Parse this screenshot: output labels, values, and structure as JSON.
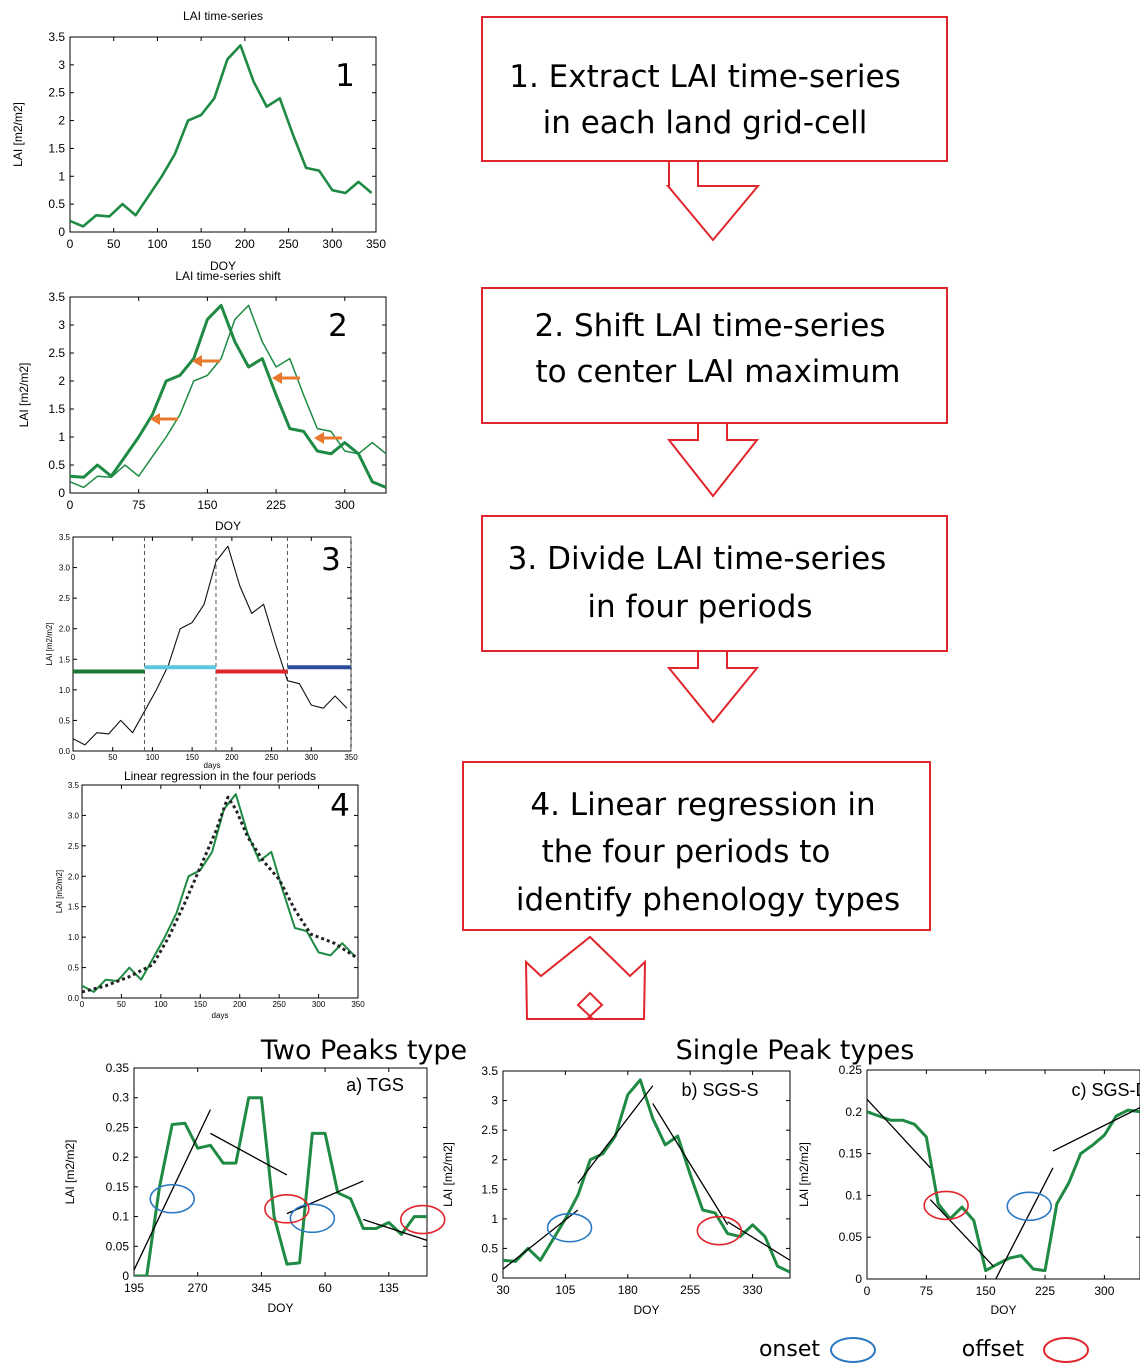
{
  "steps": [
    {
      "lines": [
        "1. Extract LAI time-series",
        "in each land grid-cell"
      ]
    },
    {
      "lines": [
        "2. Shift LAI time-series",
        " to center LAI maximum"
      ]
    },
    {
      "lines": [
        "3. Divide LAI time-series",
        "in four periods"
      ]
    },
    {
      "lines": [
        "4. Linear regression in",
        "the four periods to",
        "identify phenology types"
      ]
    }
  ],
  "sections": {
    "two_peaks": "Two Peaks type",
    "single_peak": "Single Peak types"
  },
  "legend": {
    "onset": "onset",
    "offset": "offset",
    "onset_color": "#2a79c2",
    "offset_color": "#e0262c"
  },
  "colors": {
    "series": "#1e8a43",
    "box": "#e0262c",
    "p3_green": "#1c7a35",
    "p3_cyan": "#5bc6dd",
    "p3_red": "#e0262c",
    "p3_blue": "#2c4b9a",
    "arrow": "#e8792c"
  },
  "chart_data": [
    {
      "id": "p1",
      "type": "line",
      "title": "LAI time-series",
      "label": "1",
      "xlabel": "DOY",
      "ylabel": "LAI [m2/m2]",
      "xlim": [
        0,
        350
      ],
      "ylim": [
        0,
        3.5
      ],
      "xticks": [
        0,
        50,
        100,
        150,
        200,
        250,
        300,
        350
      ],
      "yticks": [
        0,
        0.5,
        1,
        1.5,
        2,
        2.5,
        3,
        3.5
      ],
      "x": [
        0,
        15,
        30,
        45,
        60,
        75,
        90,
        105,
        120,
        135,
        150,
        165,
        180,
        195,
        210,
        225,
        240,
        255,
        270,
        285,
        300,
        315,
        330,
        345
      ],
      "y": [
        0.2,
        0.1,
        0.3,
        0.28,
        0.5,
        0.3,
        0.65,
        1.0,
        1.4,
        2.0,
        2.1,
        2.4,
        3.1,
        3.35,
        2.7,
        2.25,
        2.4,
        1.75,
        1.15,
        1.1,
        0.75,
        0.7,
        0.9,
        0.7
      ]
    },
    {
      "id": "p2",
      "type": "line",
      "title": "LAI time-series shift",
      "label": "2",
      "xlabel": "DOY",
      "ylabel": "LAI [m2/m2]",
      "xlim": [
        0,
        345
      ],
      "ylim": [
        0,
        3.5
      ],
      "xticks": [
        0,
        75,
        150,
        225,
        300
      ],
      "yticks": [
        0,
        0.5,
        1,
        1.5,
        2,
        2.5,
        3,
        3.5
      ],
      "series": [
        {
          "x": [
            0,
            15,
            30,
            45,
            60,
            75,
            90,
            105,
            120,
            135,
            150,
            165,
            180,
            195,
            210,
            225,
            240,
            255,
            270,
            285,
            300,
            315,
            330,
            345
          ],
          "y": [
            0.2,
            0.1,
            0.3,
            0.28,
            0.5,
            0.3,
            0.65,
            1.0,
            1.4,
            2.0,
            2.1,
            2.4,
            3.1,
            3.35,
            2.7,
            2.25,
            2.4,
            1.75,
            1.15,
            1.1,
            0.75,
            0.7,
            0.9,
            0.7
          ]
        },
        {
          "x": [
            0,
            15,
            30,
            45,
            60,
            75,
            90,
            105,
            120,
            135,
            150,
            165,
            180,
            195,
            210,
            225,
            240,
            255,
            270,
            285,
            300,
            315,
            330,
            345
          ],
          "y": [
            0.3,
            0.28,
            0.5,
            0.3,
            0.65,
            1.0,
            1.4,
            2.0,
            2.1,
            2.4,
            3.1,
            3.35,
            2.7,
            2.25,
            2.4,
            1.75,
            1.15,
            1.1,
            0.75,
            0.7,
            0.9,
            0.7,
            0.2,
            0.1
          ]
        }
      ]
    },
    {
      "id": "p3",
      "type": "line",
      "label": "3",
      "xlabel": "days",
      "ylabel": "LAI [m2/m2]",
      "xlim": [
        0,
        350
      ],
      "ylim": [
        0,
        3.5
      ],
      "xticks": [
        0,
        50,
        100,
        150,
        200,
        250,
        300,
        350
      ],
      "yticks": [
        0.0,
        0.5,
        1.0,
        1.5,
        2.0,
        2.5,
        3.0,
        3.5
      ],
      "ytick_labels": [
        "0.0",
        "0.5",
        "1.0",
        "1.5",
        "2.0",
        "2.5",
        "3.0",
        "3.5"
      ],
      "dividers": [
        90,
        180,
        270,
        350
      ],
      "periods": [
        {
          "x0": 0,
          "x1": 90,
          "y": 1.3
        },
        {
          "x0": 90,
          "x1": 180,
          "y": 1.37
        },
        {
          "x0": 180,
          "x1": 270,
          "y": 1.3
        },
        {
          "x0": 270,
          "x1": 350,
          "y": 1.37
        }
      ],
      "x": [
        0,
        15,
        30,
        45,
        60,
        75,
        90,
        105,
        120,
        135,
        150,
        165,
        180,
        195,
        210,
        225,
        240,
        255,
        270,
        285,
        300,
        315,
        330,
        345
      ],
      "y": [
        0.2,
        0.1,
        0.3,
        0.28,
        0.5,
        0.3,
        0.65,
        1.0,
        1.4,
        2.0,
        2.1,
        2.4,
        3.1,
        3.35,
        2.7,
        2.25,
        2.4,
        1.75,
        1.15,
        1.1,
        0.75,
        0.7,
        0.9,
        0.7
      ]
    },
    {
      "id": "p4",
      "type": "line",
      "title": "Linear regression in the four periods",
      "label": "4",
      "xlabel": "days",
      "ylabel": "LAI [m2/m2]",
      "xlim": [
        0,
        350
      ],
      "ylim": [
        0,
        3.5
      ],
      "xticks": [
        0,
        50,
        100,
        150,
        200,
        250,
        300,
        350
      ],
      "yticks": [
        0.0,
        0.5,
        1.0,
        1.5,
        2.0,
        2.5,
        3.0,
        3.5
      ],
      "ytick_labels": [
        "0.0",
        "0.5",
        "1.0",
        "1.5",
        "2.0",
        "2.5",
        "3.0",
        "3.5"
      ],
      "x": [
        0,
        15,
        30,
        45,
        60,
        75,
        90,
        105,
        120,
        135,
        150,
        165,
        180,
        195,
        210,
        225,
        240,
        255,
        270,
        285,
        300,
        315,
        330,
        345
      ],
      "y": [
        0.2,
        0.1,
        0.3,
        0.28,
        0.5,
        0.3,
        0.65,
        1.0,
        1.4,
        2.0,
        2.1,
        2.4,
        3.1,
        3.35,
        2.7,
        2.25,
        2.4,
        1.75,
        1.15,
        1.1,
        0.75,
        0.7,
        0.9,
        0.7
      ],
      "fit_x": [
        0,
        30,
        60,
        90,
        110,
        130,
        150,
        170,
        185,
        195,
        210,
        230,
        250,
        270,
        290,
        320,
        350
      ],
      "fit_y": [
        0.1,
        0.2,
        0.35,
        0.55,
        1.0,
        1.55,
        2.15,
        2.75,
        3.3,
        3.1,
        2.65,
        2.25,
        1.95,
        1.45,
        1.05,
        0.9,
        0.65
      ]
    },
    {
      "id": "pa",
      "type": "line",
      "label": "a) TGS",
      "xlabel": "DOY",
      "ylabel": "LAI [m2/m2]",
      "xlim": [
        0,
        345
      ],
      "ylim": [
        0,
        0.35
      ],
      "xticks": [
        0,
        75,
        150,
        225,
        300
      ],
      "xtick_labels": [
        "195",
        "270",
        "345",
        "60",
        "135"
      ],
      "yticks": [
        0,
        0.05,
        0.1,
        0.15,
        0.2,
        0.25,
        0.3,
        0.35
      ],
      "x": [
        0,
        15,
        30,
        45,
        60,
        75,
        90,
        105,
        120,
        135,
        150,
        165,
        180,
        195,
        210,
        225,
        240,
        255,
        270,
        285,
        300,
        315,
        330,
        345
      ],
      "y": [
        0.0,
        0.0,
        0.15,
        0.255,
        0.257,
        0.215,
        0.22,
        0.19,
        0.19,
        0.3,
        0.3,
        0.1,
        0.02,
        0.022,
        0.24,
        0.24,
        0.14,
        0.13,
        0.08,
        0.08,
        0.09,
        0.07,
        0.1,
        0.1
      ],
      "fits": [
        {
          "x": [
            0,
            90
          ],
          "y": [
            0.01,
            0.28
          ]
        },
        {
          "x": [
            90,
            180
          ],
          "y": [
            0.24,
            0.17
          ]
        },
        {
          "x": [
            180,
            270
          ],
          "y": [
            0.105,
            0.16
          ]
        },
        {
          "x": [
            270,
            345
          ],
          "y": [
            0.095,
            0.06
          ]
        }
      ],
      "onset": [
        {
          "x": 45,
          "y": 0.13
        },
        {
          "x": 210,
          "y": 0.097
        }
      ],
      "offset": [
        {
          "x": 180,
          "y": 0.113
        },
        {
          "x": 340,
          "y": 0.095
        }
      ]
    },
    {
      "id": "pb",
      "type": "line",
      "label": "b) SGS-S",
      "xlabel": "DOY",
      "ylabel": "LAI [m2/m2]",
      "xlim": [
        0,
        345
      ],
      "ylim": [
        0,
        3.5
      ],
      "xticks": [
        0,
        75,
        150,
        225,
        300
      ],
      "xtick_labels": [
        "30",
        "105",
        "180",
        "255",
        "330"
      ],
      "yticks": [
        0,
        0.5,
        1,
        1.5,
        2,
        2.5,
        3,
        3.5
      ],
      "x": [
        0,
        15,
        30,
        45,
        60,
        75,
        90,
        105,
        120,
        135,
        150,
        165,
        180,
        195,
        210,
        225,
        240,
        255,
        270,
        285,
        300,
        315,
        330,
        345
      ],
      "y": [
        0.3,
        0.28,
        0.5,
        0.3,
        0.65,
        1.0,
        1.4,
        2.0,
        2.1,
        2.4,
        3.1,
        3.35,
        2.7,
        2.25,
        2.4,
        1.75,
        1.15,
        1.1,
        0.75,
        0.7,
        0.9,
        0.7,
        0.2,
        0.1
      ],
      "fits": [
        {
          "x": [
            0,
            90
          ],
          "y": [
            0.15,
            1.15
          ]
        },
        {
          "x": [
            90,
            180
          ],
          "y": [
            1.6,
            3.25
          ]
        },
        {
          "x": [
            180,
            270
          ],
          "y": [
            2.95,
            0.9
          ]
        },
        {
          "x": [
            270,
            345
          ],
          "y": [
            0.95,
            0.3
          ]
        }
      ],
      "onset": [
        {
          "x": 80,
          "y": 0.85
        }
      ],
      "offset": [
        {
          "x": 260,
          "y": 0.8
        }
      ]
    },
    {
      "id": "pc",
      "type": "line",
      "label": "c) SGS-D",
      "xlabel": "DOY",
      "ylabel": "LAI [m2/m2]",
      "xlim": [
        0,
        345
      ],
      "ylim": [
        0,
        0.25
      ],
      "xticks": [
        0,
        75,
        150,
        225,
        300
      ],
      "xtick_labels": [
        "0",
        "75",
        "150",
        "225",
        "300"
      ],
      "yticks": [
        0,
        0.05,
        0.1,
        0.15,
        0.2,
        0.25
      ],
      "x": [
        0,
        15,
        30,
        45,
        60,
        75,
        90,
        105,
        120,
        135,
        150,
        165,
        180,
        195,
        210,
        225,
        240,
        255,
        270,
        285,
        300,
        315,
        330,
        345
      ],
      "y": [
        0.2,
        0.195,
        0.19,
        0.19,
        0.185,
        0.17,
        0.09,
        0.072,
        0.086,
        0.07,
        0.01,
        0.018,
        0.025,
        0.028,
        0.012,
        0.01,
        0.09,
        0.115,
        0.15,
        0.16,
        0.172,
        0.195,
        0.202,
        0.2
      ],
      "fits": [
        {
          "x": [
            0,
            80
          ],
          "y": [
            0.215,
            0.133
          ]
        },
        {
          "x": [
            80,
            160
          ],
          "y": [
            0.095,
            0.015
          ]
        },
        {
          "x": [
            160,
            235
          ],
          "y": [
            -0.005,
            0.133
          ]
        },
        {
          "x": [
            235,
            345
          ],
          "y": [
            0.153,
            0.205
          ]
        }
      ],
      "onset": [
        {
          "x": 205,
          "y": 0.087
        }
      ],
      "offset": [
        {
          "x": 100,
          "y": 0.088
        }
      ]
    }
  ]
}
